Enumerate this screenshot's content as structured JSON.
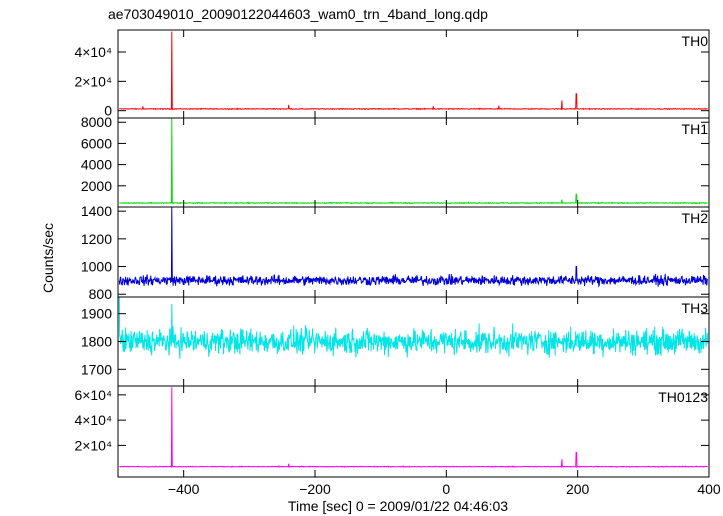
{
  "figure": {
    "title": "ae703049010_20090122044603_wam0_trn_4band_long.qdp",
    "xlabel": "Time [sec] 0 = 2009/01/22 04:46:03",
    "ylabel": "Counts/sec"
  },
  "chart_data": {
    "type": "line",
    "title": "ae703049010_20090122044603_wam0_trn_4band_long.qdp",
    "xlabel": "Time [sec] 0 = 2009/01/22 04:46:03",
    "ylabel": "Counts/sec",
    "xlim": [
      -500,
      400
    ],
    "x_ticks": [
      -400,
      -200,
      0,
      200,
      400
    ],
    "x_tick_labels": [
      "−400",
      "−200",
      "0",
      "200",
      "400"
    ],
    "grid": false,
    "panels": [
      {
        "name": "TH0",
        "color": "#ff0000",
        "ylim": [
          -5000,
          55000
        ],
        "y_ticks": [
          0,
          20000,
          40000
        ],
        "y_tick_labels": [
          "0",
          "2×10⁴",
          "4×10⁴"
        ],
        "baseline": 1200,
        "noise": 250,
        "peaks": [
          {
            "x": -418,
            "y": 54000
          },
          {
            "x": -240,
            "y": 4000
          },
          {
            "x": -462,
            "y": 3000
          },
          {
            "x": 176,
            "y": 7000
          },
          {
            "x": 198,
            "y": 11500
          },
          {
            "x": 80,
            "y": 3500
          },
          {
            "x": -20,
            "y": 3000
          }
        ]
      },
      {
        "name": "TH1",
        "color": "#00e000",
        "ylim": [
          0,
          8400
        ],
        "y_ticks": [
          2000,
          4000,
          6000,
          8000
        ],
        "y_tick_labels": [
          "2000",
          "4000",
          "6000",
          "8000"
        ],
        "baseline": 380,
        "noise": 40,
        "peaks": [
          {
            "x": -418,
            "y": 8400
          },
          {
            "x": 176,
            "y": 700
          },
          {
            "x": 198,
            "y": 1200
          }
        ]
      },
      {
        "name": "TH2",
        "color": "#0000dd",
        "ylim": [
          780,
          1430
        ],
        "y_ticks": [
          800,
          1000,
          1200,
          1400
        ],
        "y_tick_labels": [
          "800",
          "1000",
          "1200",
          "1400"
        ],
        "baseline": 900,
        "noise": 35,
        "peaks": [
          {
            "x": -418,
            "y": 1430
          },
          {
            "x": 198,
            "y": 1000
          }
        ]
      },
      {
        "name": "TH3",
        "color": "#00e5e5",
        "ylim": [
          1640,
          1960
        ],
        "y_ticks": [
          1700,
          1800,
          1900
        ],
        "y_tick_labels": [
          "1700",
          "1800",
          "1900"
        ],
        "baseline": 1800,
        "noise": 45,
        "peaks": [
          {
            "x": -498,
            "y": 1960
          },
          {
            "x": -418,
            "y": 1935
          }
        ]
      },
      {
        "name": "TH0123",
        "color": "#ff00ff",
        "ylim": [
          -5000,
          67000
        ],
        "y_ticks": [
          20000,
          40000,
          60000
        ],
        "y_tick_labels": [
          "2×10⁴",
          "4×10⁴",
          "6×10⁴"
        ],
        "baseline": 3200,
        "noise": 300,
        "peaks": [
          {
            "x": -418,
            "y": 66000
          },
          {
            "x": -240,
            "y": 5500
          },
          {
            "x": 176,
            "y": 9000
          },
          {
            "x": 198,
            "y": 14500
          }
        ]
      }
    ]
  }
}
